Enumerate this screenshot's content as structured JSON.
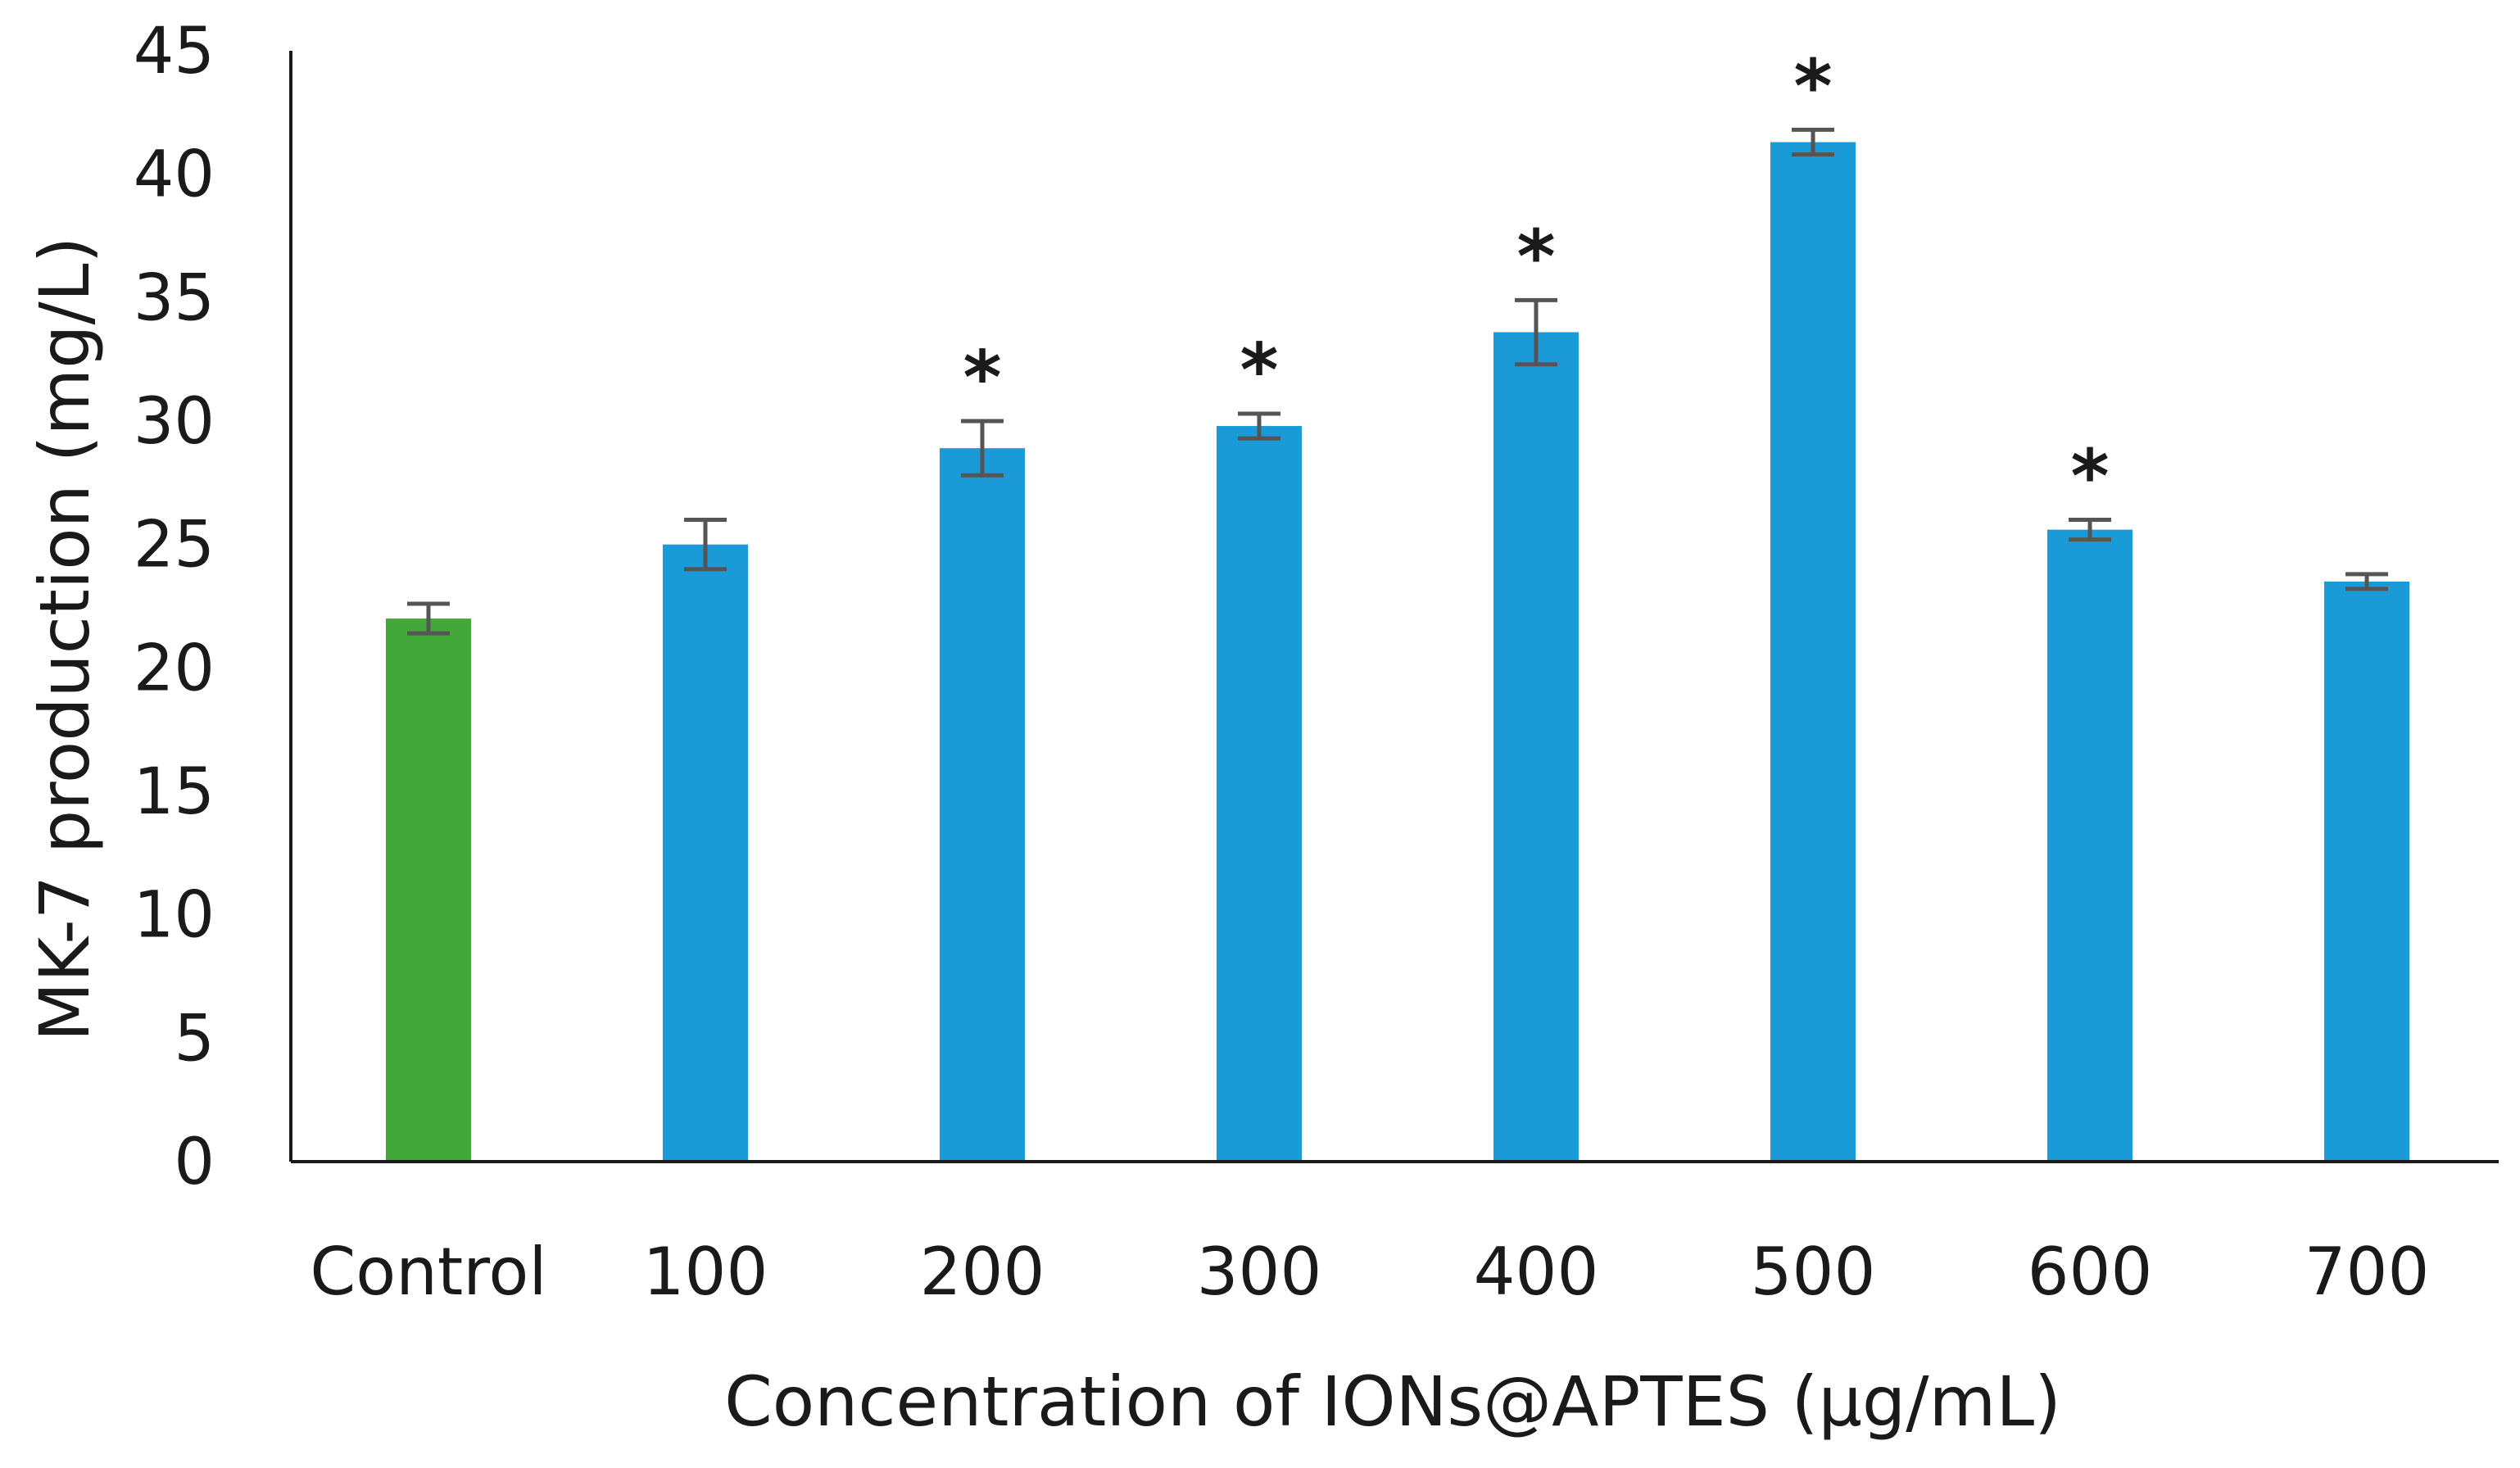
{
  "chart_data": {
    "type": "bar",
    "title": "",
    "xlabel": "Concentration of IONs@APTES (μg/mL)",
    "ylabel": "MK-7 production (mg/L)",
    "ylim": [
      0,
      45
    ],
    "yticks": [
      0,
      5,
      10,
      15,
      20,
      25,
      30,
      35,
      40,
      45
    ],
    "grid": false,
    "categories": [
      "Control",
      "100",
      "200",
      "300",
      "400",
      "500",
      "600",
      "700"
    ],
    "values": [
      22.0,
      25.0,
      28.9,
      29.8,
      33.6,
      41.3,
      25.6,
      23.5
    ],
    "errors": [
      0.6,
      1.0,
      1.1,
      0.5,
      1.3,
      0.5,
      0.4,
      0.3
    ],
    "significance": [
      "",
      "",
      "*",
      "*",
      "*",
      "*",
      "*",
      ""
    ],
    "colors": [
      "#43a83a",
      "#1a9ad6",
      "#1a9ad6",
      "#1a9ad6",
      "#1a9ad6",
      "#1a9ad6",
      "#1a9ad6",
      "#1a9ad6"
    ]
  }
}
